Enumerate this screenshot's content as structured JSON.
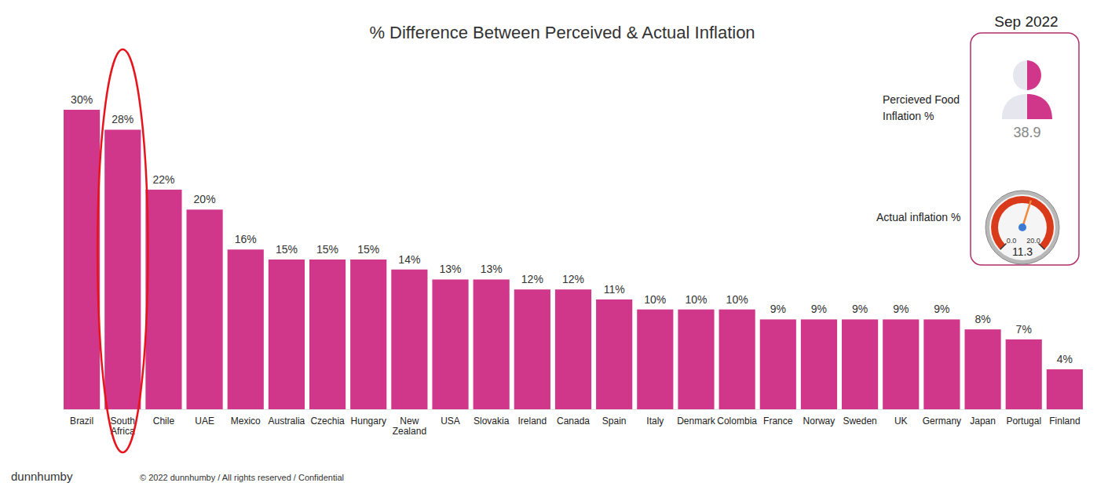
{
  "chart_data": {
    "type": "bar",
    "title": "% Difference Between Perceived & Actual Inflation",
    "categories": [
      "Brazil",
      "South Africa",
      "Chile",
      "UAE",
      "Mexico",
      "Australia",
      "Czechia",
      "Hungary",
      "New Zealand",
      "USA",
      "Slovakia",
      "Ireland",
      "Canada",
      "Spain",
      "Italy",
      "Denmark",
      "Colombia",
      "France",
      "Norway",
      "Sweden",
      "UK",
      "Germany",
      "Japan",
      "Portugal",
      "Finland"
    ],
    "values": [
      30,
      28,
      22,
      20,
      16,
      15,
      15,
      15,
      14,
      13,
      13,
      12,
      12,
      11,
      10,
      10,
      10,
      9,
      9,
      9,
      9,
      9,
      8,
      7,
      4
    ],
    "value_labels": [
      "30%",
      "28%",
      "22%",
      "20%",
      "16%",
      "15%",
      "15%",
      "15%",
      "14%",
      "13%",
      "13%",
      "12%",
      "12%",
      "11%",
      "10%",
      "10%",
      "10%",
      "9%",
      "9%",
      "9%",
      "9%",
      "9%",
      "8%",
      "7%",
      "4%"
    ],
    "color": "#d0368a",
    "ylim": [
      0,
      30
    ],
    "grid": false,
    "data_labels": true,
    "tick_labels": "x"
  },
  "panel": {
    "date": "Sep 2022",
    "perceived": {
      "label": [
        "Percieved Food",
        "Inflation %"
      ],
      "value": 38.9
    },
    "actual": {
      "label": "Actual inflation %",
      "gauge": {
        "min": 0,
        "max": 20,
        "value": 11.3,
        "ticks": [
          {
            "value": 0,
            "label": "0.0"
          },
          {
            "value": 20,
            "label": "20.0"
          }
        ]
      }
    }
  },
  "footer": {
    "brand": "dunnhumby",
    "copyright": "© 2022 dunnhumby / All rights reserved / Confidential"
  }
}
